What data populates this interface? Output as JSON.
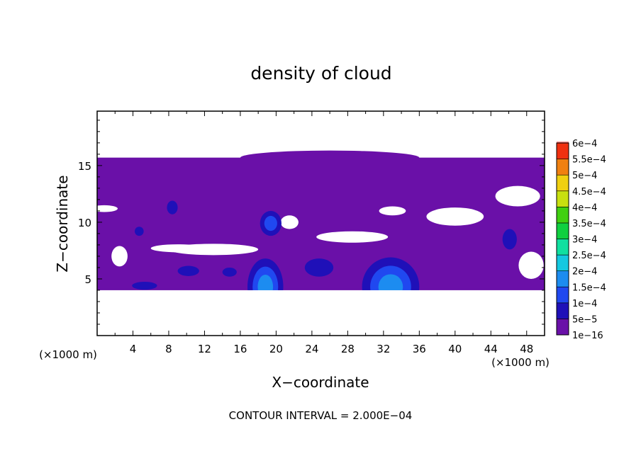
{
  "chart_data": {
    "type": "heatmap",
    "title": "density of cloud",
    "xlabel": "X−coordinate",
    "ylabel": "Z−coordinate",
    "x_unit": "(×1000 m)",
    "z_unit": "(×1000 m)",
    "xlim": [
      0,
      50
    ],
    "ylim": [
      0,
      19.8
    ],
    "xticks": [
      4,
      8,
      12,
      16,
      20,
      24,
      28,
      32,
      36,
      40,
      44,
      48
    ],
    "yticks": [
      5,
      10,
      15
    ],
    "footnote": "CONTOUR INTERVAL = 2.000E−04",
    "colorbar": {
      "labels": [
        "1e−16",
        "5e−5",
        "1e−4",
        "1.5e−4",
        "2e−4",
        "2.5e−4",
        "3e−4",
        "3.5e−4",
        "4e−4",
        "4.5e−4",
        "5e−4",
        "5.5e−4",
        "6e−4"
      ],
      "colors": [
        "#6a10a8",
        "#1f10b8",
        "#2048f0",
        "#1c8cf0",
        "#14c8e0",
        "#10e0a0",
        "#10d040",
        "#40d010",
        "#c8e010",
        "#f0d010",
        "#f08010",
        "#f03010",
        "#f08080"
      ]
    },
    "layer": {
      "z_bottom": 4,
      "z_top": 15.7
    },
    "clear_regions": [
      {
        "cx": 13,
        "cy": 7.6,
        "rx": 5,
        "ry": 0.5
      },
      {
        "cx": 28.5,
        "cy": 8.7,
        "rx": 4,
        "ry": 0.5
      },
      {
        "cx": 40,
        "cy": 10.5,
        "rx": 3.2,
        "ry": 0.8
      },
      {
        "cx": 47,
        "cy": 12.3,
        "rx": 2.5,
        "ry": 0.9
      },
      {
        "cx": 9,
        "cy": 7.7,
        "rx": 3,
        "ry": 0.35
      },
      {
        "cx": 2.5,
        "cy": 7,
        "rx": 0.9,
        "ry": 0.9
      },
      {
        "cx": 48.5,
        "cy": 6.2,
        "rx": 1.4,
        "ry": 1.2
      },
      {
        "cx": 0.8,
        "cy": 11.2,
        "rx": 1.5,
        "ry": 0.3
      },
      {
        "cx": 21.5,
        "cy": 10,
        "rx": 1.0,
        "ry": 0.6
      },
      {
        "cx": 33,
        "cy": 11,
        "rx": 1.5,
        "ry": 0.4
      }
    ],
    "blobs": [
      {
        "cx": 32.8,
        "cy": 4.3,
        "rx": 3.2,
        "ry": 2.6,
        "level": 3
      },
      {
        "cx": 18.8,
        "cy": 4.3,
        "rx": 2.0,
        "ry": 2.5,
        "level": 3
      },
      {
        "cx": 19.4,
        "cy": 9.9,
        "rx": 1.2,
        "ry": 1.1,
        "level": 2
      },
      {
        "cx": 24.8,
        "cy": 6.0,
        "rx": 1.6,
        "ry": 0.8,
        "level": 1
      },
      {
        "cx": 46.1,
        "cy": 8.5,
        "rx": 0.8,
        "ry": 0.9,
        "level": 1
      },
      {
        "cx": 8.4,
        "cy": 11.3,
        "rx": 0.6,
        "ry": 0.6,
        "level": 1
      },
      {
        "cx": 10.2,
        "cy": 5.7,
        "rx": 1.2,
        "ry": 0.45,
        "level": 1
      },
      {
        "cx": 5.3,
        "cy": 4.4,
        "rx": 1.4,
        "ry": 0.35,
        "level": 1
      },
      {
        "cx": 14.8,
        "cy": 5.6,
        "rx": 0.8,
        "ry": 0.4,
        "level": 1
      },
      {
        "cx": 4.7,
        "cy": 9.2,
        "rx": 0.5,
        "ry": 0.4,
        "level": 1
      }
    ]
  }
}
